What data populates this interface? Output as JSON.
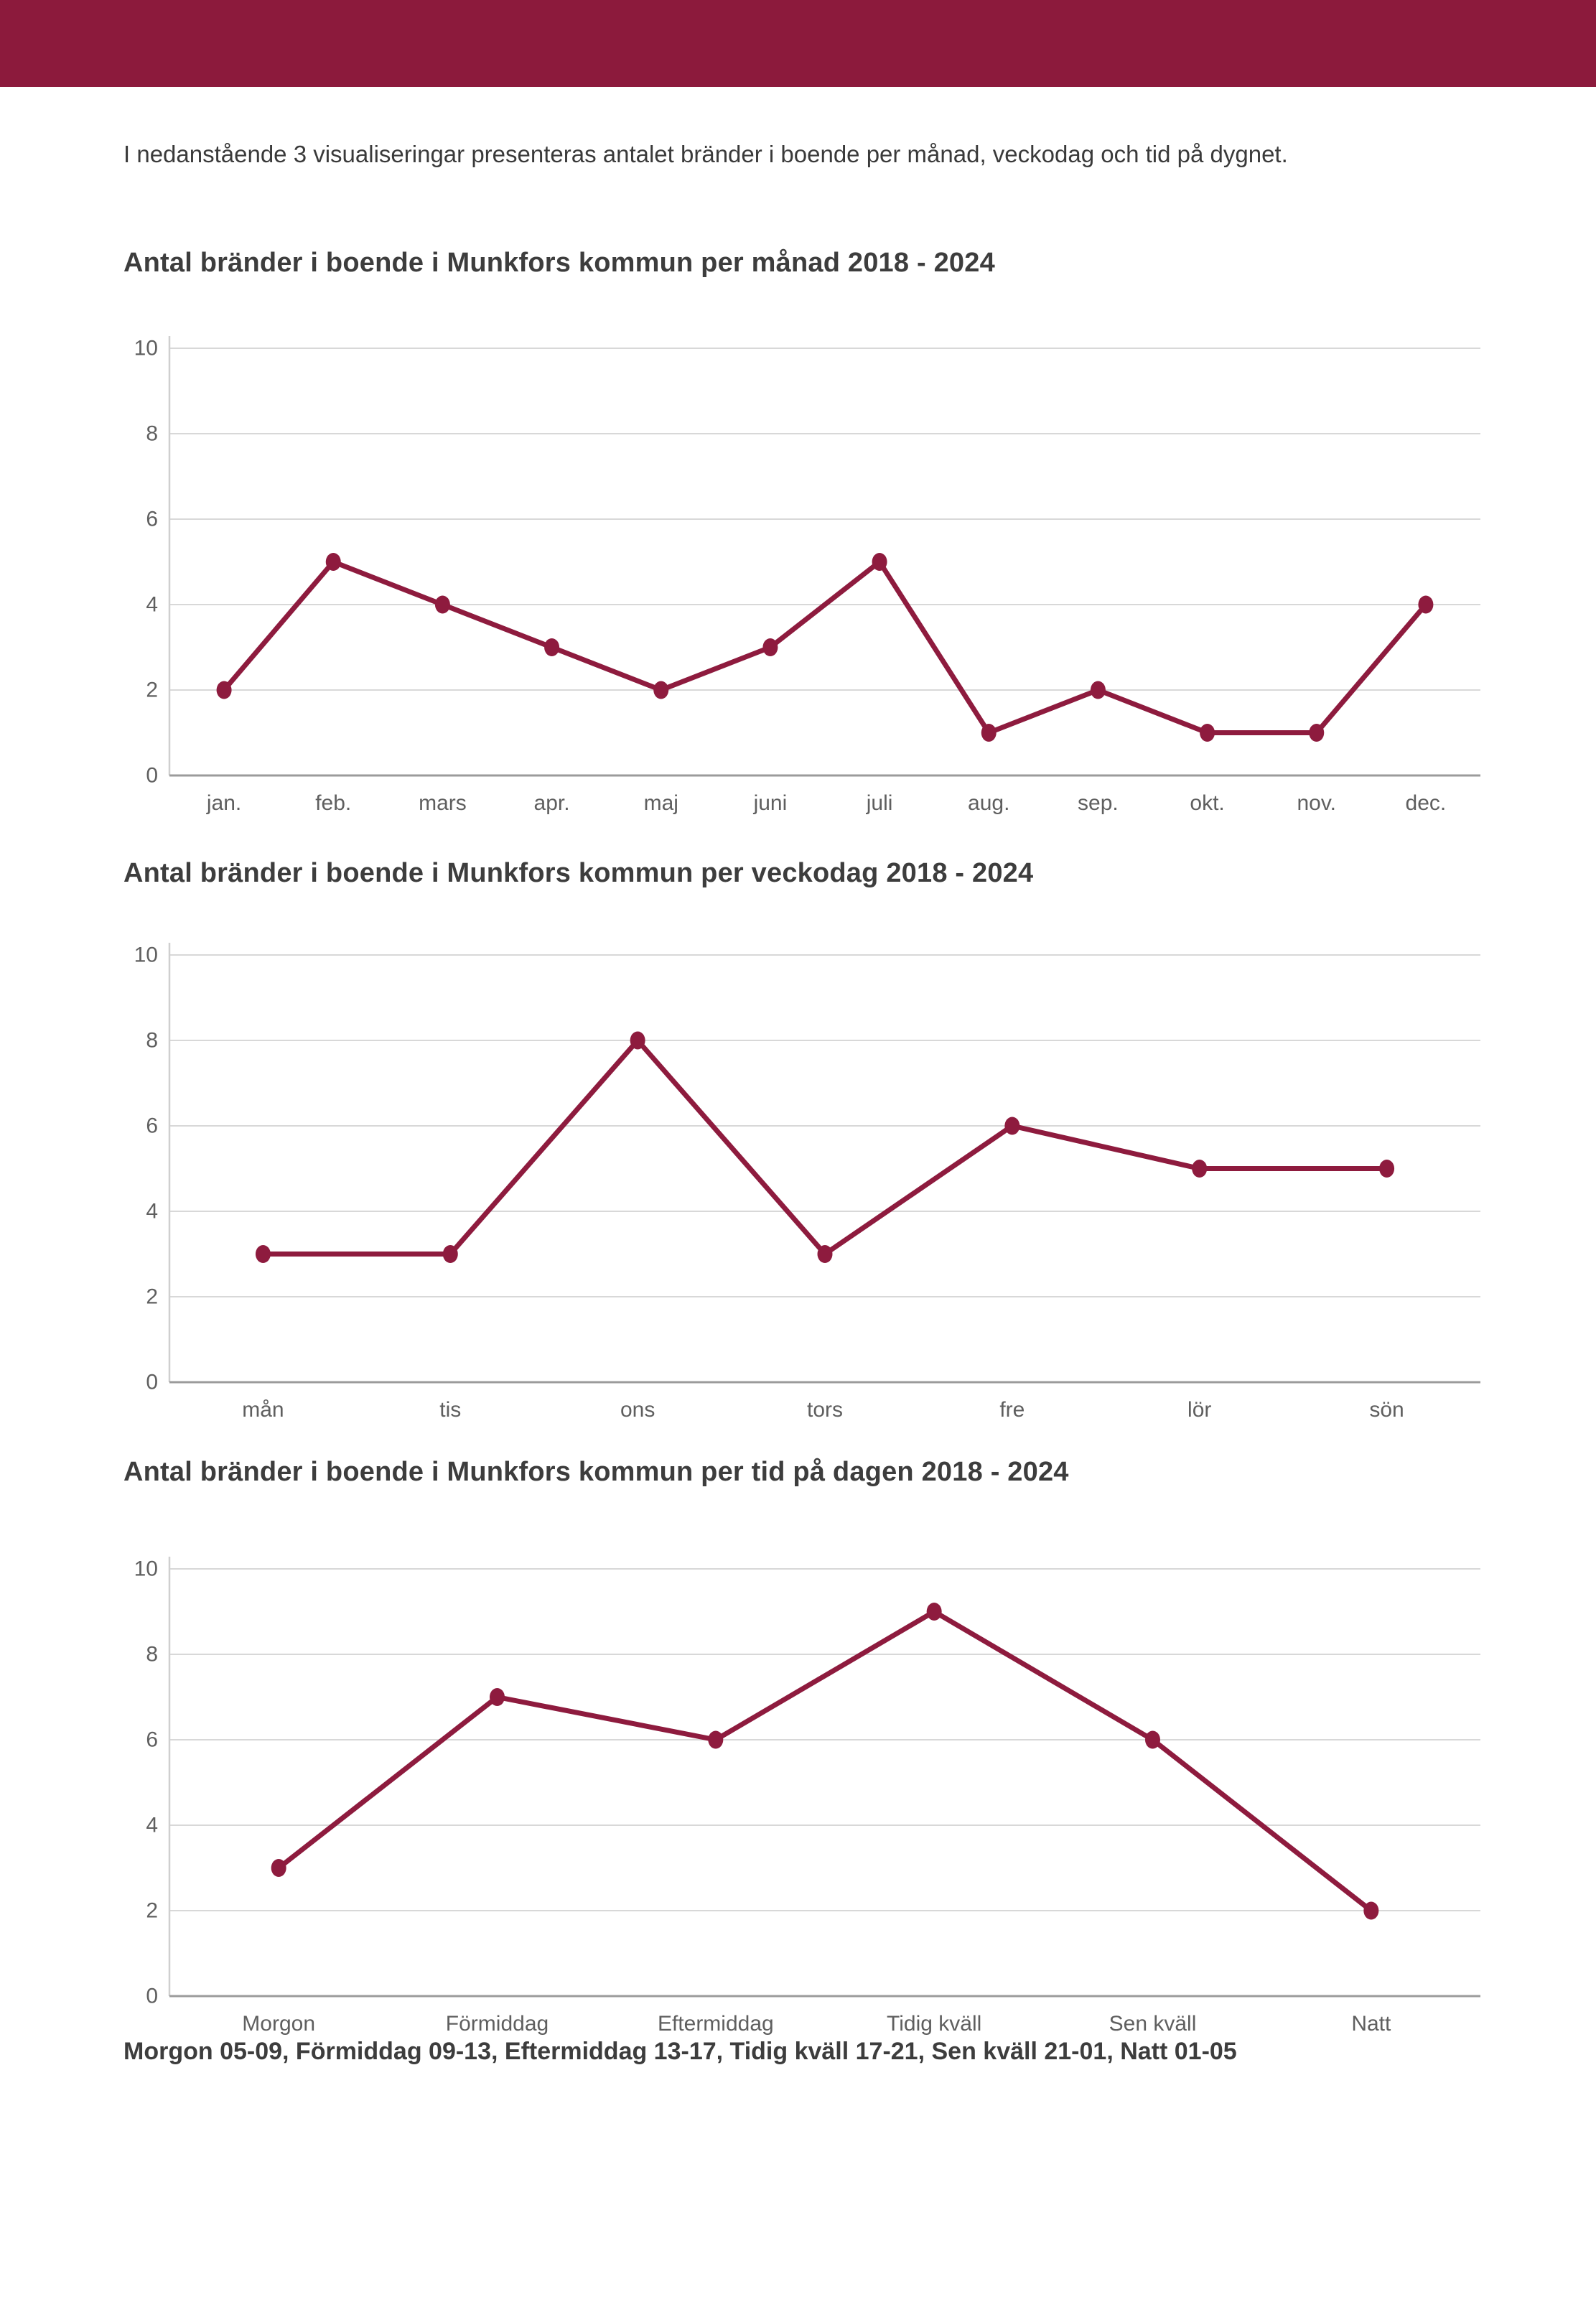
{
  "page": {
    "intro": "I nedanstående 3 visualiseringar presenteras antalet bränder i boende per månad, veckodag och tid på dygnet.",
    "footnote": "Morgon 05-09, Förmiddag 09-13, Eftermiddag 13-17, Tidig kväll 17-21, Sen kväll 21-01, Natt 01-05"
  },
  "colors": {
    "header": "#8C1A3C",
    "line": "#8E1B3E",
    "point": "#8E1B3E",
    "grid": "#d8d8d8",
    "axis_x": "#9b9b9b",
    "axis_y": "#cfcfcf",
    "tick_label": "#5f5f5f",
    "title": "#3d3d3d",
    "text": "#3a3a3a"
  },
  "chart_data": [
    {
      "type": "line",
      "title": "Antal bränder i boende i Munkfors kommun per månad 2018 - 2024",
      "categories": [
        "jan.",
        "feb.",
        "mars",
        "apr.",
        "maj",
        "juni",
        "juli",
        "aug.",
        "sep.",
        "okt.",
        "nov.",
        "dec."
      ],
      "values": [
        2,
        5,
        4,
        3,
        2,
        3,
        5,
        1,
        2,
        1,
        1,
        4
      ],
      "xlabel": "",
      "ylabel": "",
      "ylim": [
        0,
        10
      ],
      "yticks": [
        0,
        2,
        4,
        6,
        8,
        10
      ],
      "grid": true,
      "legend": false
    },
    {
      "type": "line",
      "title": "Antal bränder i boende i Munkfors kommun per veckodag 2018 - 2024",
      "categories": [
        "mån",
        "tis",
        "ons",
        "tors",
        "fre",
        "lör",
        "sön"
      ],
      "values": [
        3,
        3,
        8,
        3,
        6,
        5,
        5
      ],
      "xlabel": "",
      "ylabel": "",
      "ylim": [
        0,
        10
      ],
      "yticks": [
        0,
        2,
        4,
        6,
        8,
        10
      ],
      "grid": true,
      "legend": false
    },
    {
      "type": "line",
      "title": "Antal bränder i boende i Munkfors kommun per tid på dagen 2018 - 2024",
      "categories": [
        "Morgon",
        "Förmiddag",
        "Eftermiddag",
        "Tidig kväll",
        "Sen kväll",
        "Natt"
      ],
      "values": [
        3,
        7,
        6,
        9,
        6,
        2
      ],
      "xlabel": "",
      "ylabel": "",
      "ylim": [
        0,
        10
      ],
      "yticks": [
        0,
        2,
        4,
        6,
        8,
        10
      ],
      "grid": true,
      "legend": false
    }
  ]
}
